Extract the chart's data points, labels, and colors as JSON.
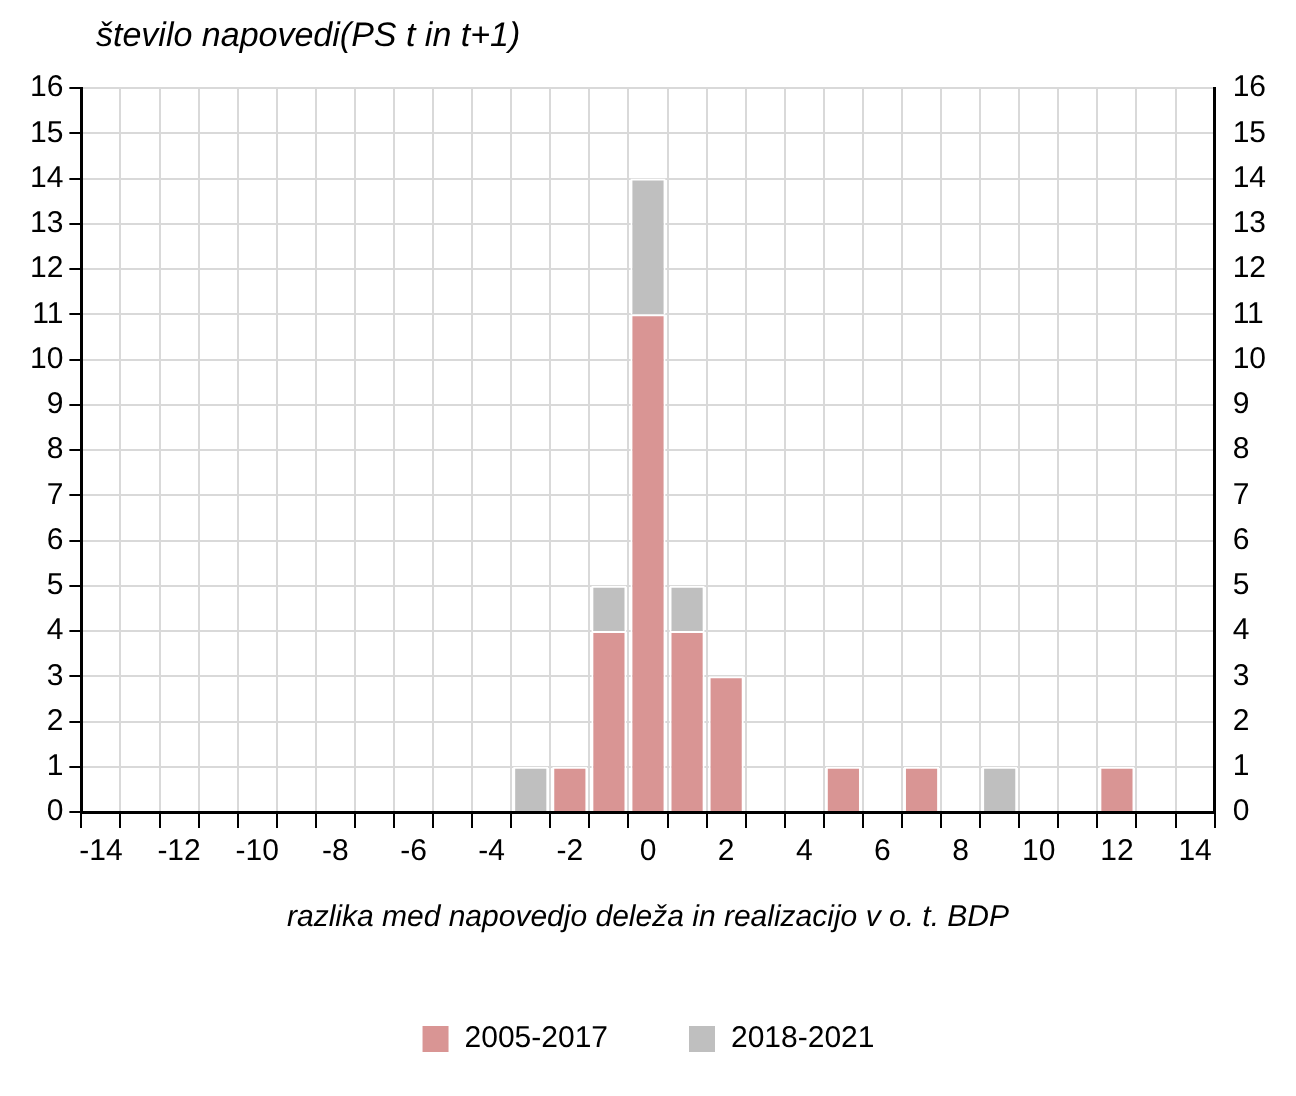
{
  "chart_data": {
    "type": "bar",
    "stacked": true,
    "ylabel": "število napovedi(PS t in t+1)",
    "xlabel": "razlika med napovedjo deleža in realizacijo v o. t. BDP",
    "categories": [
      "-14",
      null,
      "-12",
      null,
      "-10",
      null,
      "-8",
      null,
      "-6",
      null,
      "-4",
      null,
      "-2",
      null,
      "0",
      null,
      "2",
      null,
      "4",
      null,
      "6",
      null,
      "8",
      null,
      "10",
      null,
      "12",
      null,
      "14"
    ],
    "series": [
      {
        "name": "2005-2017",
        "color": "#d99594",
        "values": [
          0,
          0,
          0,
          0,
          0,
          0,
          0,
          0,
          0,
          0,
          0,
          0,
          1,
          4,
          11,
          4,
          3,
          0,
          0,
          1,
          0,
          1,
          0,
          0,
          0,
          0,
          1,
          0,
          0
        ]
      },
      {
        "name": "2018-2021",
        "color": "#bfbfbf",
        "values": [
          0,
          0,
          0,
          0,
          0,
          0,
          0,
          0,
          0,
          0,
          0,
          1,
          0,
          1,
          3,
          1,
          0,
          0,
          0,
          0,
          0,
          0,
          0,
          1,
          0,
          0,
          0,
          0,
          0
        ]
      }
    ],
    "ylim": [
      0,
      16
    ],
    "yticks": [
      0,
      1,
      2,
      3,
      4,
      5,
      6,
      7,
      8,
      9,
      10,
      11,
      12,
      13,
      14,
      15,
      16
    ],
    "y2lim": [
      0,
      16
    ],
    "y2ticks": [
      0,
      1,
      2,
      3,
      4,
      5,
      6,
      7,
      8,
      9,
      10,
      11,
      12,
      13,
      14,
      15,
      16
    ],
    "grid": true,
    "legend": "bottom"
  }
}
